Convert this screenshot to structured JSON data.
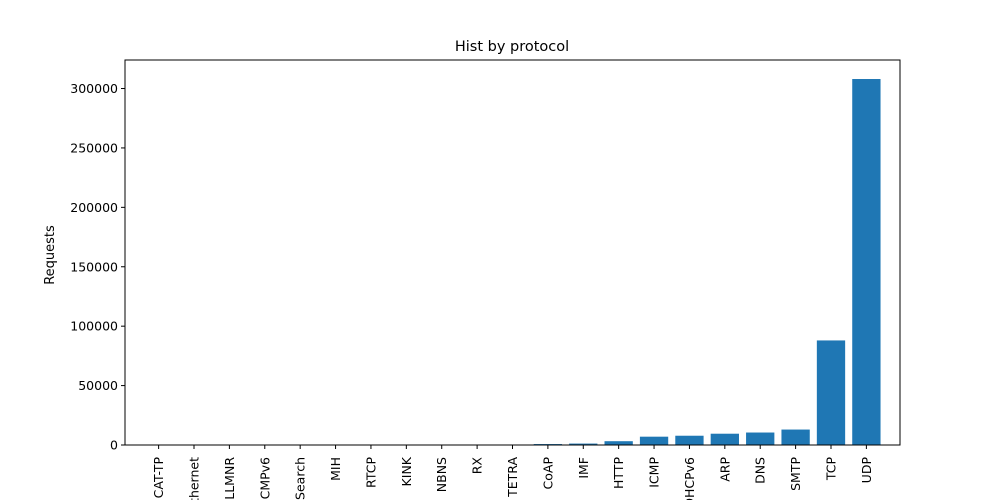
{
  "chart_data": {
    "type": "bar",
    "title": "Hist by protocol",
    "xlabel": "",
    "ylabel": "Requests",
    "categories": [
      "CAT-TP",
      "Ethernet",
      "LLMNR",
      "ICMPv6",
      "Search",
      "MIH",
      "RTCP",
      "KINK",
      "NBNS",
      "RX",
      "TETRA",
      "CoAP",
      "IMF",
      "HTTP",
      "ICMP",
      "DHCPv6",
      "ARP",
      "DNS",
      "SMTP",
      "TCP",
      "UDP"
    ],
    "values": [
      3,
      5,
      8,
      12,
      15,
      20,
      25,
      30,
      45,
      60,
      100,
      800,
      1200,
      3200,
      7000,
      7800,
      9500,
      10500,
      13000,
      88000,
      308000
    ],
    "ylim": [
      0,
      324000
    ],
    "yticks": [
      0,
      50000,
      100000,
      150000,
      200000,
      250000,
      300000
    ],
    "bar_color": "#1f77b4",
    "grid": false
  }
}
